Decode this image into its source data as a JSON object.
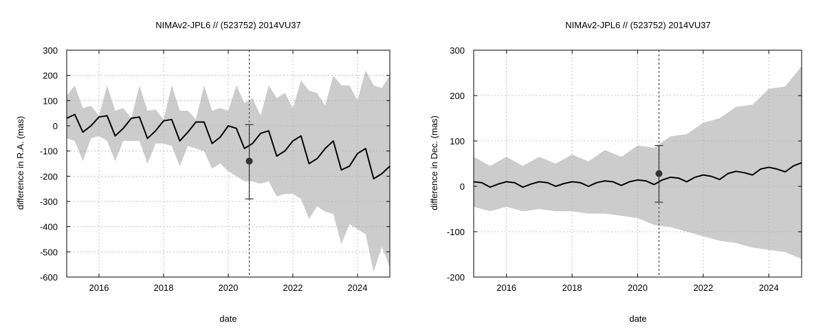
{
  "chart_data": [
    {
      "type": "line",
      "title": "NIMAv2-JPL6 // (523752) 2014VU37",
      "xlabel": "date",
      "ylabel": "difference in R.A. (mas)",
      "xlim": [
        2015.0,
        2025.0
      ],
      "ylim": [
        -600,
        300
      ],
      "xticks": [
        "2016",
        "2018",
        "2020",
        "2022",
        "2024"
      ],
      "yticks": [
        "-600",
        "-500",
        "-400",
        "-300",
        "-200",
        "-100",
        "0",
        "100",
        "200",
        "300"
      ],
      "grid": true,
      "band": {
        "x": [
          2015.0,
          2015.25,
          2015.5,
          2015.75,
          2016.0,
          2016.25,
          2016.5,
          2016.75,
          2017.0,
          2017.25,
          2017.5,
          2017.75,
          2018.0,
          2018.25,
          2018.5,
          2018.75,
          2019.0,
          2019.25,
          2019.5,
          2019.75,
          2020.0,
          2020.25,
          2020.5,
          2020.75,
          2021.0,
          2021.25,
          2021.5,
          2021.75,
          2022.0,
          2022.25,
          2022.5,
          2022.75,
          2023.0,
          2023.25,
          2023.5,
          2023.75,
          2024.0,
          2024.25,
          2024.5,
          2024.75,
          2025.0
        ],
        "upper": [
          120,
          160,
          70,
          80,
          40,
          160,
          60,
          70,
          30,
          160,
          60,
          65,
          25,
          160,
          60,
          60,
          25,
          160,
          60,
          70,
          60,
          160,
          90,
          110,
          40,
          160,
          110,
          130,
          70,
          180,
          140,
          130,
          80,
          200,
          160,
          160,
          100,
          220,
          160,
          150,
          200
        ],
        "lower": [
          -50,
          -60,
          -140,
          -50,
          -40,
          -60,
          -140,
          -60,
          -60,
          -60,
          -150,
          -70,
          -70,
          -80,
          -160,
          -80,
          -90,
          -100,
          -170,
          -150,
          -180,
          -200,
          -220,
          -220,
          -230,
          -220,
          -280,
          -270,
          -270,
          -290,
          -370,
          -320,
          -340,
          -350,
          -470,
          -390,
          -410,
          -430,
          -580,
          -480,
          -560
        ]
      },
      "series": [
        {
          "x": [
            2015.0,
            2015.25,
            2015.5,
            2015.75,
            2016.0,
            2016.25,
            2016.5,
            2016.75,
            2017.0,
            2017.25,
            2017.5,
            2017.75,
            2018.0,
            2018.25,
            2018.5,
            2018.75,
            2019.0,
            2019.25,
            2019.5,
            2019.75,
            2020.0,
            2020.25,
            2020.5,
            2020.75,
            2021.0,
            2021.25,
            2021.5,
            2021.75,
            2022.0,
            2022.25,
            2022.5,
            2022.75,
            2023.0,
            2023.25,
            2023.5,
            2023.75,
            2024.0,
            2024.25,
            2024.5,
            2024.75,
            2025.0
          ],
          "y": [
            30,
            45,
            -25,
            0,
            35,
            40,
            -40,
            -10,
            30,
            35,
            -50,
            -20,
            20,
            25,
            -60,
            -25,
            15,
            15,
            -70,
            -45,
            0,
            -10,
            -90,
            -70,
            -30,
            -20,
            -120,
            -100,
            -60,
            -40,
            -150,
            -130,
            -90,
            -60,
            -175,
            -160,
            -110,
            -90,
            -210,
            -190,
            -160
          ]
        }
      ],
      "observation": {
        "x": 2020.65,
        "y": -140,
        "err_low": -290,
        "err_high": 5
      },
      "vline_x": 2020.65
    },
    {
      "type": "line",
      "title": "NIMAv2-JPL6 // (523752) 2014VU37",
      "xlabel": "date",
      "ylabel": "difference in Dec. (mas)",
      "xlim": [
        2015.0,
        2025.0
      ],
      "ylim": [
        -200,
        300
      ],
      "xticks": [
        "2016",
        "2018",
        "2020",
        "2022",
        "2024"
      ],
      "yticks": [
        "-200",
        "-100",
        "0",
        "100",
        "200",
        "300"
      ],
      "grid": true,
      "band": {
        "x": [
          2015.0,
          2015.5,
          2016.0,
          2016.5,
          2017.0,
          2017.5,
          2018.0,
          2018.5,
          2019.0,
          2019.5,
          2020.0,
          2020.5,
          2021.0,
          2021.5,
          2022.0,
          2022.5,
          2023.0,
          2023.5,
          2024.0,
          2024.5,
          2025.0
        ],
        "upper": [
          65,
          45,
          65,
          45,
          65,
          50,
          70,
          55,
          80,
          65,
          90,
          85,
          110,
          115,
          140,
          150,
          175,
          180,
          215,
          220,
          265
        ],
        "lower": [
          -45,
          -55,
          -45,
          -55,
          -50,
          -55,
          -55,
          -60,
          -60,
          -65,
          -70,
          -85,
          -90,
          -100,
          -110,
          -120,
          -125,
          -135,
          -140,
          -145,
          -160
        ]
      },
      "series": [
        {
          "x": [
            2015.0,
            2015.25,
            2015.5,
            2015.75,
            2016.0,
            2016.25,
            2016.5,
            2016.75,
            2017.0,
            2017.25,
            2017.5,
            2017.75,
            2018.0,
            2018.25,
            2018.5,
            2018.75,
            2019.0,
            2019.25,
            2019.5,
            2019.75,
            2020.0,
            2020.25,
            2020.5,
            2020.75,
            2021.0,
            2021.25,
            2021.5,
            2021.75,
            2022.0,
            2022.25,
            2022.5,
            2022.75,
            2023.0,
            2023.25,
            2023.5,
            2023.75,
            2024.0,
            2024.25,
            2024.5,
            2024.75,
            2025.0
          ],
          "y": [
            10,
            8,
            -2,
            5,
            10,
            8,
            -2,
            5,
            10,
            8,
            0,
            6,
            10,
            8,
            0,
            8,
            12,
            10,
            2,
            10,
            14,
            12,
            4,
            14,
            20,
            18,
            10,
            20,
            25,
            22,
            15,
            28,
            33,
            30,
            25,
            38,
            42,
            38,
            32,
            45,
            52
          ]
        }
      ],
      "observation": {
        "x": 2020.65,
        "y": 28,
        "err_low": -35,
        "err_high": 90
      },
      "vline_x": 2020.65
    }
  ],
  "colors": {
    "band": "#cccccc",
    "line": "#000000",
    "grid": "#b0b0b0",
    "marker": "#333333"
  }
}
